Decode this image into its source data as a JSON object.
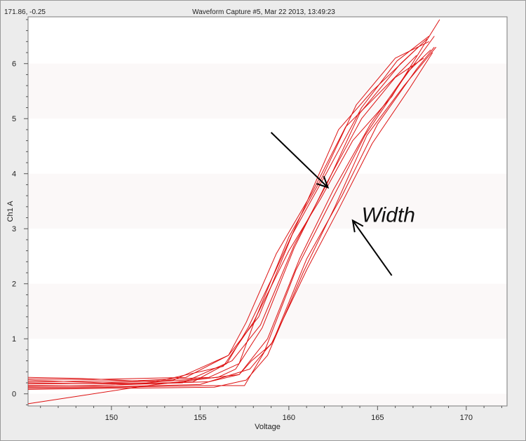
{
  "window": {
    "coordinate_readout": "171.86, -0.25",
    "title": "Waveform Capture #5, Mar 22 2013, 13:49:23"
  },
  "chart_data": {
    "type": "line",
    "title": "Waveform Capture #5, Mar 22 2013, 13:49:23",
    "xlabel": "Voltage",
    "ylabel": "Ch1 A",
    "xlim": [
      145.3,
      172.3
    ],
    "ylim": [
      -0.22,
      6.85
    ],
    "x_ticks": [
      150,
      155,
      160,
      165,
      170
    ],
    "x_tick_labels": [
      "150",
      "155",
      "160",
      "165",
      "170"
    ],
    "y_ticks": [
      0,
      1,
      2,
      3,
      4,
      5,
      6
    ],
    "y_tick_labels": [
      "0",
      "1",
      "2",
      "3",
      "4",
      "5",
      "6"
    ],
    "grid": "horizontal alternating bands",
    "line_color": "#dd1111",
    "series": [
      {
        "x": [
          145.3,
          150.0,
          155.0,
          157.8,
          159.1,
          161.0,
          163.0,
          165.0,
          167.2,
          168.2
        ],
        "y": [
          0.12,
          0.13,
          0.17,
          0.45,
          0.95,
          2.45,
          3.6,
          4.9,
          5.9,
          6.3
        ]
      },
      {
        "x": [
          145.3,
          149.0,
          154.0,
          156.8,
          158.4,
          160.3,
          162.2,
          164.0,
          166.3,
          167.8
        ],
        "y": [
          0.15,
          0.15,
          0.2,
          0.6,
          1.25,
          2.7,
          3.85,
          5.1,
          6.0,
          6.45
        ]
      },
      {
        "x": [
          145.3,
          151.0,
          155.5,
          157.2,
          158.8,
          160.6,
          162.5,
          164.6,
          166.7,
          168.0
        ],
        "y": [
          0.2,
          0.18,
          0.22,
          0.35,
          1.0,
          2.45,
          3.7,
          4.9,
          5.85,
          6.25
        ]
      },
      {
        "x": [
          145.3,
          148.2,
          152.5,
          156.3,
          158.0,
          160.0,
          161.8,
          163.6,
          165.8,
          168.5
        ],
        "y": [
          0.3,
          0.28,
          0.22,
          0.5,
          1.3,
          2.6,
          3.55,
          4.6,
          5.4,
          6.8
        ]
      },
      {
        "x": [
          145.3,
          150.5,
          155.2,
          157.5,
          158.6,
          160.4,
          162.3,
          164.3,
          166.4,
          168.2
        ],
        "y": [
          0.1,
          0.12,
          0.15,
          0.15,
          0.75,
          2.25,
          3.45,
          4.7,
          5.7,
          6.5
        ]
      },
      {
        "x": [
          145.3,
          152.0,
          156.0,
          157.0,
          158.5,
          160.3,
          162.0,
          164.1,
          166.0,
          167.6
        ],
        "y": [
          0.18,
          0.2,
          0.3,
          0.45,
          1.2,
          2.65,
          3.75,
          5.0,
          5.75,
          6.1
        ]
      },
      {
        "x": [
          145.3,
          149.5,
          153.5,
          156.6,
          158.3,
          160.2,
          162.1,
          164.1,
          166.1,
          167.9
        ],
        "y": [
          0.25,
          0.2,
          0.25,
          0.7,
          1.4,
          2.9,
          4.0,
          5.2,
          6.05,
          6.5
        ]
      },
      {
        "x": [
          145.3,
          150.0,
          155.8,
          157.6,
          158.8,
          160.8,
          162.6,
          164.4,
          166.5,
          168.3
        ],
        "y": [
          0.08,
          0.1,
          0.12,
          0.25,
          0.7,
          2.2,
          3.4,
          4.7,
          5.6,
          6.3
        ]
      },
      {
        "x": [
          145.3,
          151.5,
          155.5,
          157.2,
          158.1,
          160.0,
          161.9,
          163.8,
          166.0,
          167.9
        ],
        "y": [
          0.22,
          0.24,
          0.3,
          0.55,
          1.35,
          2.85,
          3.95,
          5.25,
          6.1,
          6.4
        ]
      },
      {
        "x": [
          145.3,
          152.0,
          157.2,
          157.9,
          159.0,
          161.0,
          162.8,
          164.7,
          166.8,
          168.1
        ],
        "y": [
          -0.18,
          0.15,
          0.35,
          0.6,
          0.9,
          2.25,
          3.35,
          4.55,
          5.55,
          6.2
        ]
      },
      {
        "x": [
          145.3,
          150.0,
          154.6,
          156.5,
          157.7,
          159.2,
          160.9,
          162.8,
          164.7,
          167.3
        ],
        "y": [
          0.14,
          0.16,
          0.22,
          0.55,
          1.2,
          2.2,
          3.4,
          4.8,
          5.5,
          6.3
        ]
      },
      {
        "x": [
          145.3,
          149.0,
          154.2,
          156.6,
          157.6,
          159.3,
          161.3,
          163.2,
          164.9,
          167.2
        ],
        "y": [
          0.27,
          0.26,
          0.3,
          0.7,
          1.3,
          2.55,
          3.65,
          4.85,
          5.4,
          6.15
        ]
      }
    ],
    "annotations": [
      {
        "text": "Width",
        "x": 164.1,
        "y": 3.25
      },
      {
        "type": "arrow",
        "from": [
          159.0,
          4.75
        ],
        "to": [
          162.2,
          3.75
        ]
      },
      {
        "type": "arrow",
        "from": [
          165.8,
          2.15
        ],
        "to": [
          163.6,
          3.15
        ]
      }
    ]
  }
}
